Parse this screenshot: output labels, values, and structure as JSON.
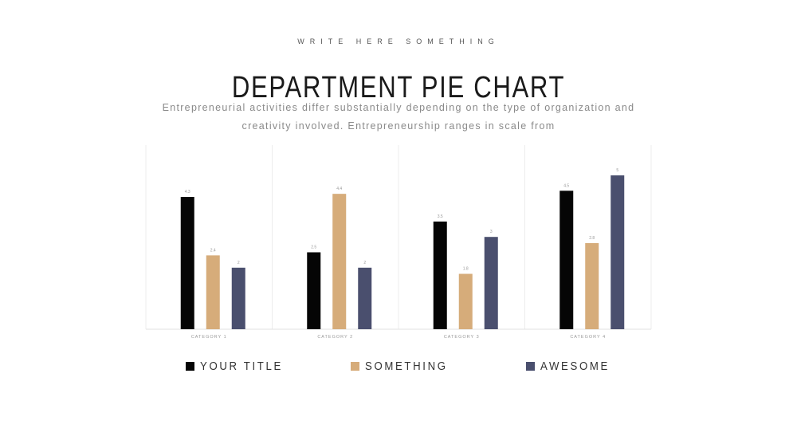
{
  "header": {
    "eyebrow": "WRITE HERE SOMETHING",
    "title": "DEPARTMENT PIE CHART",
    "description": "Entrepreneurial activities differ substantially depending on the type of organization and creativity involved. Entrepreneurship ranges in scale from"
  },
  "chart_data": {
    "type": "bar",
    "title": "",
    "xlabel": "",
    "ylabel": "",
    "categories": [
      "CATEGORY 1",
      "CATEGORY 2",
      "CATEGORY 3",
      "CATEGORY 4"
    ],
    "ylim": [
      0,
      5
    ],
    "grid": false,
    "legend_position": "bottom",
    "series": [
      {
        "name": "YOUR TITLE",
        "color": "#050505",
        "values": [
          4.3,
          2.5,
          3.5,
          4.5
        ]
      },
      {
        "name": "SOMETHING",
        "color": "#d6ac7a",
        "values": [
          2.4,
          4.4,
          1.8,
          2.8
        ]
      },
      {
        "name": "AWESOME",
        "color": "#4a4f6e",
        "values": [
          2.0,
          2.0,
          3.0,
          5.0
        ]
      }
    ]
  }
}
